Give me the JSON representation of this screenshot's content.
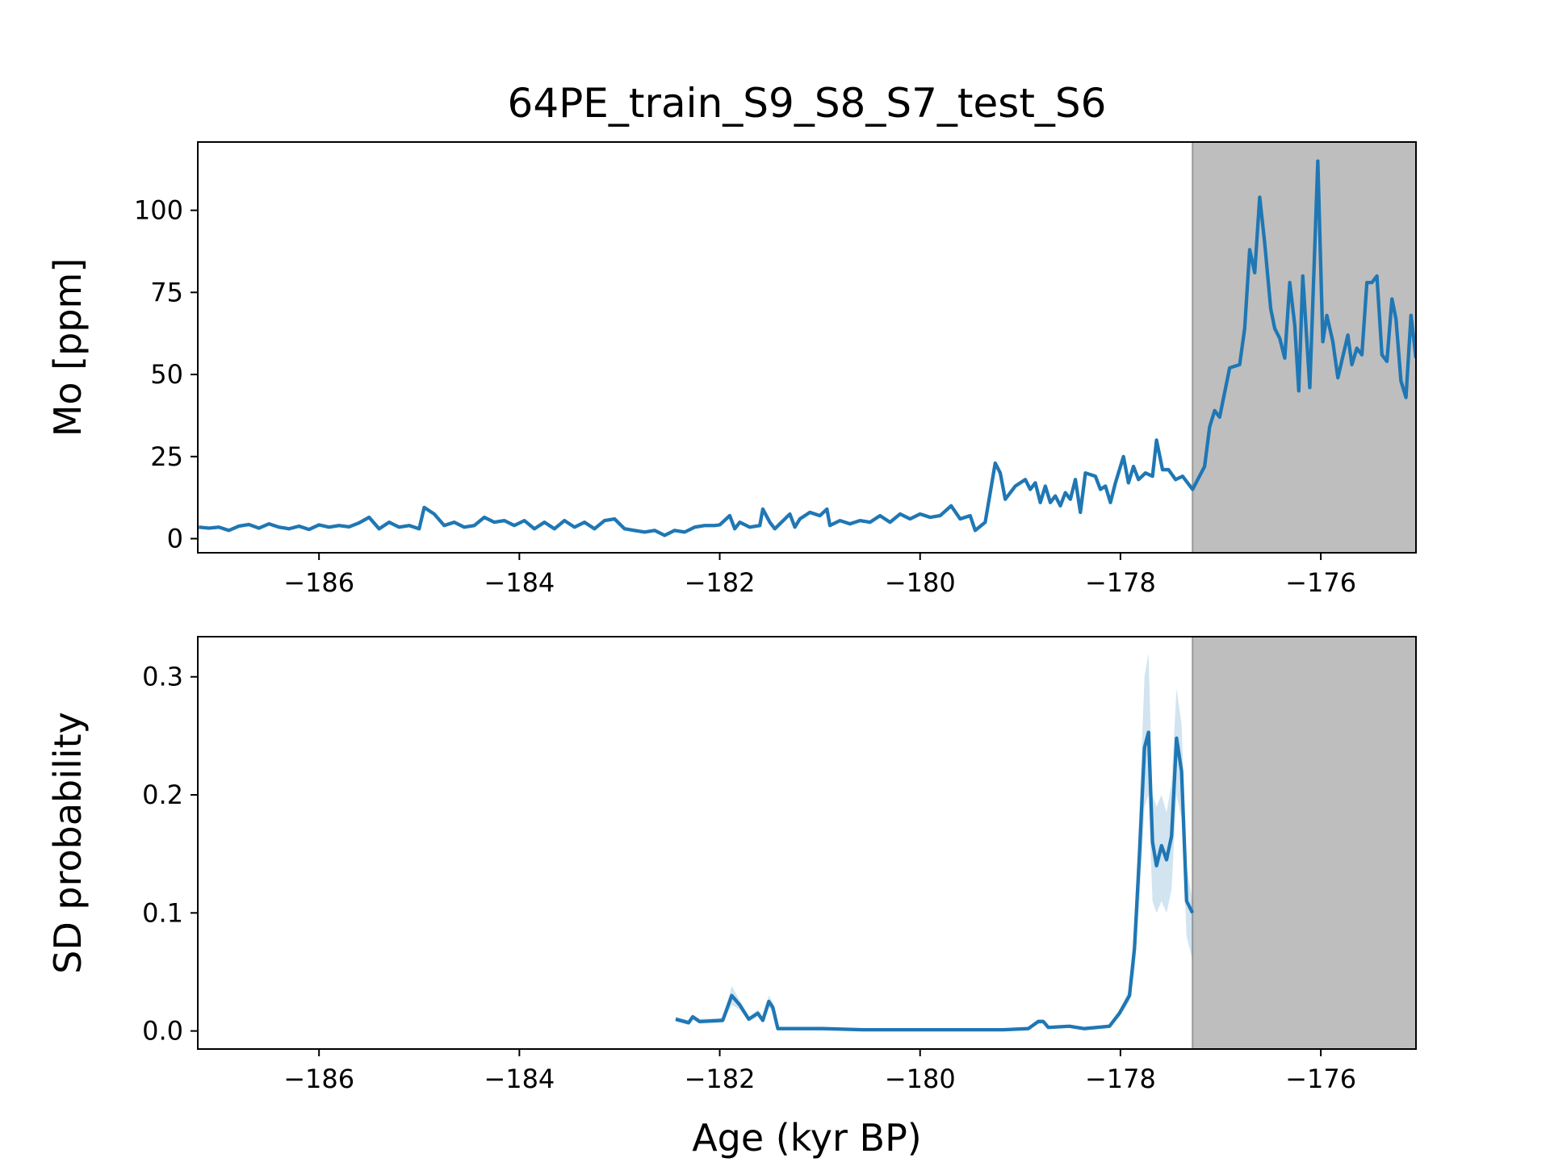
{
  "chart_data": [
    {
      "type": "line",
      "title": "64PE_train_S9_S8_S7_test_S6",
      "ylabel": "Mo [ppm]",
      "x": [
        -187.2,
        -187.1,
        -187.0,
        -186.9,
        -186.8,
        -186.7,
        -186.6,
        -186.5,
        -186.4,
        -186.3,
        -186.2,
        -186.1,
        -186.0,
        -185.9,
        -185.8,
        -185.7,
        -185.6,
        -185.5,
        -185.4,
        -185.3,
        -185.2,
        -185.1,
        -185.0,
        -184.95,
        -184.85,
        -184.75,
        -184.65,
        -184.55,
        -184.45,
        -184.35,
        -184.25,
        -184.15,
        -184.05,
        -183.95,
        -183.85,
        -183.75,
        -183.65,
        -183.55,
        -183.45,
        -183.35,
        -183.25,
        -183.15,
        -183.05,
        -182.95,
        -182.85,
        -182.75,
        -182.65,
        -182.55,
        -182.45,
        -182.35,
        -182.25,
        -182.15,
        -182.05,
        -182.0,
        -181.9,
        -181.85,
        -181.8,
        -181.7,
        -181.6,
        -181.57,
        -181.5,
        -181.45,
        -181.4,
        -181.3,
        -181.25,
        -181.2,
        -181.1,
        -181.0,
        -180.93,
        -180.9,
        -180.8,
        -180.7,
        -180.6,
        -180.5,
        -180.4,
        -180.3,
        -180.2,
        -180.1,
        -180.0,
        -179.9,
        -179.8,
        -179.69,
        -179.6,
        -179.5,
        -179.45,
        -179.35,
        -179.25,
        -179.2,
        -179.15,
        -179.05,
        -178.95,
        -178.9,
        -178.85,
        -178.8,
        -178.75,
        -178.7,
        -178.65,
        -178.6,
        -178.55,
        -178.5,
        -178.45,
        -178.4,
        -178.35,
        -178.25,
        -178.2,
        -178.15,
        -178.1,
        -178.05,
        -177.97,
        -177.92,
        -177.87,
        -177.82,
        -177.75,
        -177.68,
        -177.64,
        -177.58,
        -177.52,
        -177.45,
        -177.38,
        -177.28,
        -177.16,
        -177.11,
        -177.06,
        -177.01,
        -176.91,
        -176.81,
        -176.76,
        -176.71,
        -176.66,
        -176.61,
        -176.56,
        -176.5,
        -176.46,
        -176.41,
        -176.36,
        -176.31,
        -176.26,
        -176.22,
        -176.18,
        -176.11,
        -176.03,
        -175.98,
        -175.94,
        -175.88,
        -175.83,
        -175.73,
        -175.69,
        -175.64,
        -175.59,
        -175.54,
        -175.49,
        -175.44,
        -175.39,
        -175.34,
        -175.29,
        -175.25,
        -175.2,
        -175.15,
        -175.1,
        -175.05
      ],
      "series": [
        {
          "color": "#1f77b4",
          "values": [
            3.5,
            3.2,
            3.5,
            2.5,
            3.8,
            4.3,
            3.2,
            4.5,
            3.5,
            3.0,
            3.8,
            2.8,
            4.2,
            3.5,
            4.0,
            3.6,
            4.8,
            6.5,
            3.0,
            5.0,
            3.5,
            4.0,
            3.0,
            9.5,
            7.5,
            4.0,
            5.0,
            3.5,
            4.0,
            6.5,
            5.0,
            5.5,
            4.0,
            5.5,
            3.0,
            5.0,
            3.0,
            5.5,
            3.5,
            5.0,
            3.0,
            5.5,
            6.0,
            3.0,
            2.5,
            2.0,
            2.5,
            1.0,
            2.5,
            2.0,
            3.5,
            4.0,
            4.0,
            4.2,
            7.0,
            3.0,
            5.0,
            3.5,
            4.0,
            9.0,
            5.0,
            3.0,
            4.5,
            7.5,
            3.5,
            6.0,
            8.0,
            7.0,
            9.0,
            4.0,
            5.5,
            4.5,
            5.5,
            5.0,
            7.0,
            5.0,
            7.5,
            6.0,
            7.5,
            6.5,
            7.0,
            10.0,
            6.0,
            7.0,
            2.5,
            5.0,
            23.0,
            20,
            12,
            16,
            18,
            15,
            17,
            11,
            16,
            11,
            13,
            10,
            14,
            12,
            18,
            8,
            20,
            19,
            15,
            16,
            11,
            17,
            25,
            17,
            22,
            18,
            20,
            19,
            30,
            21,
            21,
            18,
            19,
            15,
            22,
            34,
            39,
            37,
            52,
            53,
            64,
            88,
            81,
            104,
            90,
            70,
            64,
            61,
            55,
            78,
            65,
            45,
            80,
            46,
            115,
            60,
            68,
            60,
            49,
            62,
            53,
            58,
            56,
            78,
            78,
            80,
            56,
            54,
            73,
            67,
            48,
            43,
            68,
            55
          ]
        }
      ],
      "xlim": [
        -187.21,
        -175.05
      ],
      "ylim": [
        -4.3,
        120.8
      ],
      "xticks": [
        {
          "value": -186,
          "label": "−186"
        },
        {
          "value": -184,
          "label": "−184"
        },
        {
          "value": -182,
          "label": "−182"
        },
        {
          "value": -180,
          "label": "−180"
        },
        {
          "value": -178,
          "label": "−178"
        },
        {
          "value": -176,
          "label": "−176"
        }
      ],
      "yticks": [
        0,
        25,
        50,
        75,
        100
      ],
      "shaded_xrange": [
        -177.28,
        -175.05
      ],
      "shade_color": "#bebebe"
    },
    {
      "type": "line",
      "ylabel": "SD probability",
      "xlabel": "Age (kyr BP)",
      "x": [
        -182.44,
        -182.31,
        -182.27,
        -182.2,
        -181.97,
        -181.88,
        -181.8,
        -181.71,
        -181.62,
        -181.57,
        -181.51,
        -181.47,
        -181.42,
        -181.27,
        -180.97,
        -180.57,
        -180.17,
        -179.67,
        -179.17,
        -178.92,
        -178.82,
        -178.77,
        -178.72,
        -178.51,
        -178.36,
        -178.11,
        -178.01,
        -177.91,
        -177.86,
        -177.81,
        -177.76,
        -177.72,
        -177.68,
        -177.64,
        -177.59,
        -177.54,
        -177.49,
        -177.44,
        -177.39,
        -177.34,
        -177.28
      ],
      "series": [
        {
          "color": "#1f77b4",
          "values": [
            0.01,
            0.007,
            0.012,
            0.008,
            0.009,
            0.03,
            0.022,
            0.01,
            0.015,
            0.009,
            0.025,
            0.02,
            0.002,
            0.002,
            0.002,
            0.001,
            0.001,
            0.001,
            0.001,
            0.002,
            0.008,
            0.008,
            0.003,
            0.004,
            0.002,
            0.004,
            0.015,
            0.03,
            0.07,
            0.15,
            0.24,
            0.253,
            0.16,
            0.14,
            0.157,
            0.145,
            0.165,
            0.248,
            0.22,
            0.11,
            0.1
          ],
          "lower": [
            0.008,
            0.005,
            0.01,
            0.006,
            0.007,
            0.022,
            0.018,
            0.008,
            0.012,
            0.007,
            0.02,
            0.016,
            0.001,
            0.001,
            0.001,
            0.0,
            0.0,
            0.0,
            0.0,
            0.001,
            0.006,
            0.006,
            0.002,
            0.003,
            0.001,
            0.003,
            0.012,
            0.025,
            0.05,
            0.11,
            0.19,
            0.2,
            0.11,
            0.1,
            0.11,
            0.1,
            0.12,
            0.2,
            0.18,
            0.08,
            0.06
          ],
          "upper": [
            0.012,
            0.009,
            0.014,
            0.01,
            0.011,
            0.038,
            0.026,
            0.012,
            0.018,
            0.011,
            0.03,
            0.024,
            0.003,
            0.003,
            0.003,
            0.002,
            0.002,
            0.002,
            0.002,
            0.003,
            0.01,
            0.01,
            0.004,
            0.005,
            0.003,
            0.005,
            0.018,
            0.035,
            0.09,
            0.19,
            0.3,
            0.32,
            0.2,
            0.19,
            0.2,
            0.185,
            0.21,
            0.29,
            0.26,
            0.14,
            0.11
          ]
        }
      ],
      "xlim": [
        -187.21,
        -175.05
      ],
      "ylim": [
        -0.0153,
        0.334
      ],
      "xticks": [
        {
          "value": -186,
          "label": "−186"
        },
        {
          "value": -184,
          "label": "−184"
        },
        {
          "value": -182,
          "label": "−182"
        },
        {
          "value": -180,
          "label": "−180"
        },
        {
          "value": -178,
          "label": "−178"
        },
        {
          "value": -176,
          "label": "−176"
        }
      ],
      "yticks": [
        {
          "value": 0,
          "label": "0.0"
        },
        0.1,
        0.2,
        0.3
      ],
      "shaded_xrange": [
        -177.28,
        -175.05
      ],
      "shade_color": "#bebebe"
    }
  ]
}
